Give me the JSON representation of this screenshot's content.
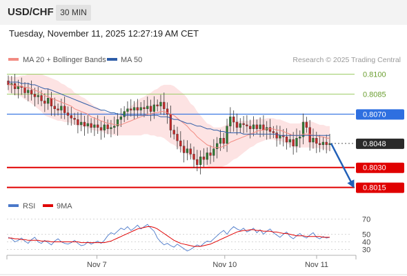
{
  "header": {
    "symbol": "USD/CHF",
    "timeframe": "30 MIN"
  },
  "datetime": "Tuesday, November 11, 2025 12:27:19 AM CET",
  "legend": {
    "items": [
      {
        "label": "MA 20 + Bollinger Bands",
        "color": "#f28b82"
      },
      {
        "label": "MA 50",
        "color": "#2e5da8"
      }
    ],
    "credit": "Research © 2025 Trading Central"
  },
  "rsi_legend": {
    "items": [
      {
        "label": "RSI",
        "color": "#4a78c9"
      },
      {
        "label": "9MA",
        "color": "#e00000"
      }
    ]
  },
  "colors": {
    "resistance_green": "#9ccc65",
    "pivot_blue": "#2e6fe0",
    "support_red": "#e00000",
    "bollinger_fill": "#fde3e3",
    "candle_up": "#2e7d32",
    "candle_down": "#c62828",
    "forecast_arrow": "#2160b8"
  },
  "chart_data": [
    {
      "type": "candlestick",
      "ylim": [
        0.8005,
        0.8108
      ],
      "xlim": [
        0,
        98
      ],
      "x_ticks": [
        {
          "pos": 27,
          "label": "Nov 7"
        },
        {
          "pos": 66,
          "label": "Nov 10"
        },
        {
          "pos": 94,
          "label": "Nov 11"
        }
      ],
      "levels": [
        {
          "value": 0.81,
          "label": "0.8100",
          "kind": "resistance"
        },
        {
          "value": 0.8085,
          "label": "0.8085",
          "kind": "resistance"
        },
        {
          "value": 0.807,
          "label": "0.8070",
          "kind": "pivot"
        },
        {
          "value": 0.8048,
          "label": "0.8048",
          "kind": "last_price"
        },
        {
          "value": 0.803,
          "label": "0.8030",
          "kind": "support"
        },
        {
          "value": 0.8015,
          "label": "0.8015",
          "kind": "support"
        }
      ],
      "close_path": [
        0.8092,
        0.8093,
        0.8089,
        0.8091,
        0.809,
        0.8086,
        0.8088,
        0.8085,
        0.8083,
        0.8084,
        0.808,
        0.8078,
        0.8082,
        0.8076,
        0.8074,
        0.8073,
        0.8076,
        0.8071,
        0.8069,
        0.8067,
        0.8066,
        0.8062,
        0.8064,
        0.8061,
        0.8063,
        0.806,
        0.8062,
        0.806,
        0.8058,
        0.8062,
        0.8059,
        0.806,
        0.8061,
        0.8066,
        0.8068,
        0.8072,
        0.8074,
        0.8073,
        0.8075,
        0.8073,
        0.8075,
        0.8074,
        0.8076,
        0.8072,
        0.8077,
        0.8076,
        0.8079,
        0.8074,
        0.807,
        0.8058,
        0.8055,
        0.805,
        0.8046,
        0.8041,
        0.8044,
        0.804,
        0.8036,
        0.8032,
        0.8038,
        0.8036,
        0.8041,
        0.8039,
        0.8044,
        0.8048,
        0.8052,
        0.8048,
        0.8061,
        0.8068,
        0.8064,
        0.806,
        0.8063,
        0.8062,
        0.8061,
        0.8059,
        0.8062,
        0.8059,
        0.8062,
        0.8058,
        0.806,
        0.8057,
        0.8056,
        0.8052,
        0.8054,
        0.8053,
        0.8049,
        0.8051,
        0.8046,
        0.8052,
        0.8053,
        0.8064,
        0.806,
        0.8049,
        0.8052,
        0.8048,
        0.8047,
        0.8049,
        0.8047,
        0.8048
      ],
      "ma20": [
        0.8092,
        0.8092,
        0.8091,
        0.8091,
        0.8091,
        0.809,
        0.809,
        0.8089,
        0.8088,
        0.8087,
        0.8086,
        0.8084,
        0.8083,
        0.8082,
        0.8081,
        0.808,
        0.8079,
        0.8078,
        0.8077,
        0.8076,
        0.8074,
        0.8073,
        0.8072,
        0.8071,
        0.807,
        0.8068,
        0.8067,
        0.8066,
        0.8065,
        0.8064,
        0.8063,
        0.8063,
        0.8062,
        0.8062,
        0.8062,
        0.8063,
        0.8064,
        0.8065,
        0.8066,
        0.8067,
        0.8068,
        0.8069,
        0.807,
        0.807,
        0.8071,
        0.8071,
        0.8072,
        0.8072,
        0.8071,
        0.807,
        0.8069,
        0.8067,
        0.8065,
        0.8063,
        0.8061,
        0.8058,
        0.8056,
        0.8053,
        0.8051,
        0.8049,
        0.8047,
        0.8046,
        0.8045,
        0.8045,
        0.8045,
        0.8046,
        0.8047,
        0.8049,
        0.805,
        0.8051,
        0.8052,
        0.8053,
        0.8054,
        0.8055,
        0.8056,
        0.8057,
        0.8058,
        0.8058,
        0.8059,
        0.8059,
        0.8059,
        0.8058,
        0.8058,
        0.8057,
        0.8056,
        0.8055,
        0.8054,
        0.8054,
        0.8054,
        0.8055,
        0.8055,
        0.8055,
        0.8054,
        0.8054,
        0.8053,
        0.8053,
        0.8052,
        0.8052
      ],
      "ma50": [
        0.8094,
        0.8094,
        0.8094,
        0.8094,
        0.8093,
        0.8093,
        0.8093,
        0.8092,
        0.8092,
        0.8091,
        0.809,
        0.8089,
        0.8089,
        0.8088,
        0.8087,
        0.8086,
        0.8085,
        0.8084,
        0.8083,
        0.8082,
        0.8081,
        0.808,
        0.8079,
        0.8078,
        0.8077,
        0.8076,
        0.8075,
        0.8074,
        0.8073,
        0.8073,
        0.8072,
        0.8071,
        0.8071,
        0.807,
        0.807,
        0.8069,
        0.8069,
        0.8069,
        0.8069,
        0.8069,
        0.8069,
        0.8069,
        0.8069,
        0.8069,
        0.8069,
        0.8069,
        0.8068,
        0.8068,
        0.8068,
        0.8067,
        0.8066,
        0.8066,
        0.8065,
        0.8064,
        0.8063,
        0.8063,
        0.8062,
        0.8061,
        0.8061,
        0.806,
        0.8059,
        0.8059,
        0.8058,
        0.8058,
        0.8057,
        0.8057,
        0.8056,
        0.8056,
        0.8056,
        0.8056,
        0.8056,
        0.8055,
        0.8055,
        0.8055,
        0.8055,
        0.8055,
        0.8055,
        0.8055,
        0.8055,
        0.8055,
        0.8055,
        0.8055,
        0.8054,
        0.8054,
        0.8054,
        0.8054,
        0.8054,
        0.8054,
        0.8054,
        0.8054,
        0.8054,
        0.8054,
        0.8054,
        0.8054,
        0.8054,
        0.8054,
        0.8054,
        0.8054
      ],
      "bollinger_halfwidth": [
        0.0006,
        0.0006,
        0.0007,
        0.0007,
        0.0008,
        0.0009,
        0.001,
        0.0011,
        0.0012,
        0.0013,
        0.0014,
        0.0015,
        0.0015,
        0.0015,
        0.0015,
        0.0015,
        0.0014,
        0.0014,
        0.0013,
        0.0013,
        0.0012,
        0.0012,
        0.0011,
        0.0011,
        0.001,
        0.001,
        0.0009,
        0.0009,
        0.0008,
        0.0008,
        0.0008,
        0.0008,
        0.0008,
        0.0008,
        0.0008,
        0.0009,
        0.001,
        0.0011,
        0.0012,
        0.0013,
        0.0014,
        0.0014,
        0.0015,
        0.0016,
        0.0017,
        0.0018,
        0.0019,
        0.002,
        0.0021,
        0.0022,
        0.0022,
        0.0022,
        0.0022,
        0.0022,
        0.0021,
        0.002,
        0.002,
        0.0019,
        0.0018,
        0.0017,
        0.0016,
        0.0016,
        0.0015,
        0.0015,
        0.0015,
        0.0015,
        0.0015,
        0.0015,
        0.0014,
        0.0014,
        0.0013,
        0.0012,
        0.0011,
        0.001,
        0.001,
        0.0009,
        0.0009,
        0.0008,
        0.0008,
        0.0008,
        0.0008,
        0.0008,
        0.0008,
        0.0008,
        0.0008,
        0.0008,
        0.0009,
        0.0009,
        0.0009,
        0.001,
        0.001,
        0.001,
        0.001,
        0.0009,
        0.0009,
        0.0009,
        0.0009,
        0.0009
      ],
      "forecast": {
        "from": 0.8048,
        "to": 0.8015
      }
    },
    {
      "type": "line",
      "ylim": [
        25,
        75
      ],
      "y_ticks": [
        70,
        50,
        40,
        30
      ],
      "series": [
        {
          "name": "RSI",
          "values": [
            46,
            44,
            40,
            42,
            45,
            41,
            38,
            43,
            46,
            40,
            38,
            42,
            39,
            36,
            41,
            44,
            40,
            38,
            37,
            39,
            42,
            38,
            35,
            36,
            40,
            37,
            39,
            41,
            38,
            42,
            48,
            52,
            50,
            54,
            58,
            56,
            60,
            55,
            58,
            62,
            57,
            60,
            63,
            58,
            54,
            45,
            40,
            36,
            38,
            35,
            33,
            37,
            34,
            31,
            28,
            30,
            33,
            36,
            34,
            38,
            41,
            40,
            44,
            48,
            52,
            55,
            50,
            56,
            60,
            57,
            55,
            58,
            53,
            55,
            58,
            52,
            56,
            50,
            54,
            57,
            52,
            49,
            46,
            50,
            53,
            47,
            44,
            48,
            51,
            47,
            45,
            49,
            52,
            46,
            44,
            47,
            45,
            46
          ]
        },
        {
          "name": "9MA",
          "values": [
            45,
            45,
            44,
            44,
            43,
            43,
            42,
            42,
            42,
            42,
            41,
            41,
            41,
            40,
            40,
            40,
            40,
            40,
            40,
            40,
            40,
            40,
            39,
            39,
            39,
            39,
            39,
            39,
            39,
            39,
            40,
            41,
            43,
            45,
            47,
            49,
            51,
            53,
            55,
            57,
            58,
            59,
            60,
            60,
            59,
            57,
            54,
            51,
            48,
            45,
            42,
            40,
            38,
            37,
            36,
            35,
            34,
            34,
            34,
            35,
            36,
            37,
            39,
            41,
            43,
            45,
            47,
            49,
            51,
            53,
            54,
            55,
            55,
            56,
            56,
            55,
            55,
            54,
            54,
            54,
            53,
            53,
            52,
            51,
            51,
            50,
            49,
            48,
            48,
            48,
            47,
            47,
            47,
            47,
            47,
            46,
            46,
            46
          ]
        }
      ]
    }
  ]
}
